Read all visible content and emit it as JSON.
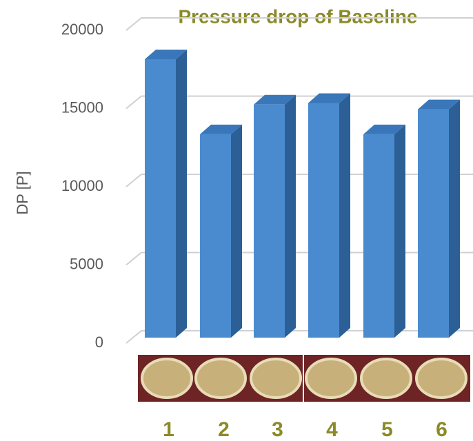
{
  "chart_data": {
    "type": "bar3d",
    "title": "Pressure drop of Baseline",
    "y_label": "DP [P]",
    "categories": [
      "1",
      "2",
      "3",
      "4",
      "5",
      "6"
    ],
    "values": [
      17800,
      13000,
      14900,
      15000,
      13000,
      14600
    ],
    "color": "#4a8bd0",
    "ylim": [
      0,
      20000
    ],
    "yticks": [
      0,
      5000,
      10000,
      15000,
      20000
    ],
    "grid": true
  }
}
